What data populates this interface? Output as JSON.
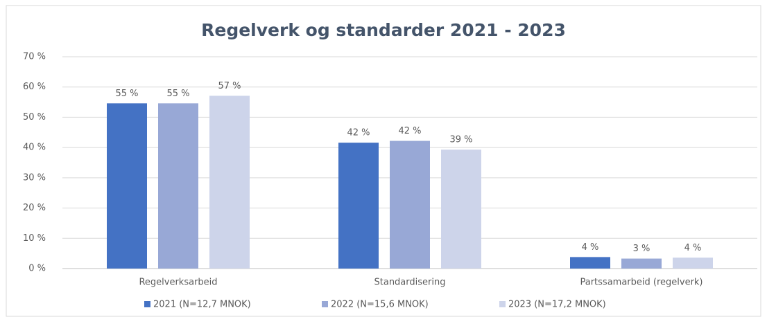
{
  "chart_data": {
    "type": "bar",
    "title": "Regelverk og standarder 2021 - 2023",
    "categories": [
      "Regelverksarbeid",
      "Standardisering",
      "Partssamarbeid (regelverk)"
    ],
    "series": [
      {
        "name": "2021 (N=12,7 MNOK)",
        "color": "#4472c4",
        "values": [
          54.6,
          41.6,
          3.8
        ],
        "value_labels": [
          "55 %",
          "42 %",
          "4 %"
        ]
      },
      {
        "name": "2022 (N=15,6 MNOK)",
        "color": "#98a8d6",
        "values": [
          54.6,
          42.2,
          3.3
        ],
        "value_labels": [
          "55 %",
          "42 %",
          "3 %"
        ]
      },
      {
        "name": "2023 (N=17,2 MNOK)",
        "color": "#cdd4ea",
        "values": [
          57.1,
          39.3,
          3.6
        ],
        "value_labels": [
          "57 %",
          "39 %",
          "4 %"
        ]
      }
    ],
    "ylim": [
      0,
      70
    ],
    "yticks": [
      {
        "value": 0,
        "label": "0 %"
      },
      {
        "value": 10,
        "label": "10 %"
      },
      {
        "value": 20,
        "label": "20 %"
      },
      {
        "value": 30,
        "label": "30 %"
      },
      {
        "value": 40,
        "label": "40 %"
      },
      {
        "value": 50,
        "label": "50 %"
      },
      {
        "value": 60,
        "label": "60 %"
      },
      {
        "value": 70,
        "label": "70 %"
      }
    ],
    "grid": true,
    "legend": "bottom"
  }
}
